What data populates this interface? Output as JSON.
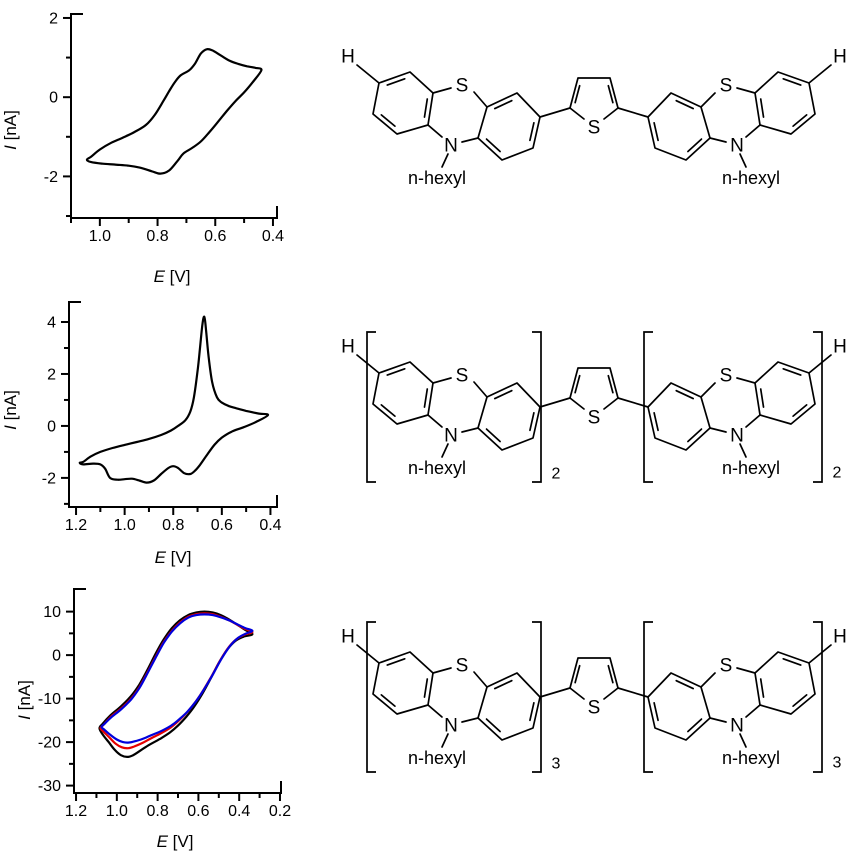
{
  "molecule": {
    "labels": {
      "h_left": "H",
      "h_right": "H",
      "sulfur": "S",
      "nitrogen": "N",
      "hexyl": "n-hexyl",
      "thiophene_sulfur": "S"
    }
  },
  "structures": [
    {
      "repeat_subscript": ""
    },
    {
      "repeat_subscript": "2"
    },
    {
      "repeat_subscript": "3"
    }
  ],
  "chart_data": [
    {
      "type": "line",
      "title": "",
      "xlabel": "E [V]",
      "ylabel": "I [nA]",
      "xlabel_var": "E",
      "xlabel_unit": " [V]",
      "ylabel_var": "I",
      "ylabel_unit": " [nA]",
      "x_axis": {
        "range": [
          1.1,
          0.386
        ],
        "reversed": true,
        "tick_labels": [
          "1.0",
          "0.8",
          "0.6",
          "0.4"
        ],
        "tick_values": [
          1.0,
          0.8,
          0.6,
          0.4
        ],
        "minor_ticks": [
          1.1,
          0.9,
          0.7,
          0.5
        ]
      },
      "y_axis": {
        "range": [
          -3.05,
          2.1
        ],
        "tick_labels": [
          "2",
          "0",
          "-2"
        ],
        "tick_values": [
          2,
          0,
          -2
        ],
        "minor_ticks": [
          1,
          -1,
          -3
        ]
      },
      "grid": false,
      "legend": false,
      "series": [
        {
          "name": "black",
          "color": "#000000",
          "points": [
            [
              0.44,
              0.68
            ],
            [
              0.46,
              0.74
            ],
            [
              0.49,
              0.78
            ],
            [
              0.52,
              0.84
            ],
            [
              0.55,
              0.92
            ],
            [
              0.58,
              1.05
            ],
            [
              0.61,
              1.18
            ],
            [
              0.63,
              1.21
            ],
            [
              0.65,
              1.1
            ],
            [
              0.67,
              0.85
            ],
            [
              0.69,
              0.68
            ],
            [
              0.72,
              0.55
            ],
            [
              0.74,
              0.38
            ],
            [
              0.76,
              0.15
            ],
            [
              0.78,
              -0.1
            ],
            [
              0.81,
              -0.45
            ],
            [
              0.84,
              -0.7
            ],
            [
              0.88,
              -0.88
            ],
            [
              0.92,
              -1.02
            ],
            [
              0.96,
              -1.15
            ],
            [
              1.0,
              -1.32
            ],
            [
              1.03,
              -1.5
            ],
            [
              1.045,
              -1.58
            ],
            [
              1.03,
              -1.64
            ],
            [
              0.99,
              -1.68
            ],
            [
              0.95,
              -1.7
            ],
            [
              0.9,
              -1.73
            ],
            [
              0.86,
              -1.78
            ],
            [
              0.82,
              -1.87
            ],
            [
              0.79,
              -1.93
            ],
            [
              0.76,
              -1.85
            ],
            [
              0.73,
              -1.6
            ],
            [
              0.71,
              -1.42
            ],
            [
              0.68,
              -1.28
            ],
            [
              0.65,
              -1.12
            ],
            [
              0.62,
              -0.88
            ],
            [
              0.59,
              -0.62
            ],
            [
              0.56,
              -0.35
            ],
            [
              0.53,
              -0.1
            ],
            [
              0.5,
              0.12
            ],
            [
              0.47,
              0.38
            ]
          ]
        }
      ]
    },
    {
      "type": "line",
      "title": "",
      "xlabel": "E [V]",
      "ylabel": "I [nA]",
      "xlabel_var": "E",
      "xlabel_unit": " [V]",
      "ylabel_var": "I",
      "ylabel_unit": " [nA]",
      "x_axis": {
        "range": [
          1.229,
          0.373
        ],
        "reversed": true,
        "tick_labels": [
          "1.2",
          "1.0",
          "0.8",
          "0.6",
          "0.4"
        ],
        "tick_values": [
          1.2,
          1.0,
          0.8,
          0.6,
          0.4
        ],
        "minor_ticks": [
          1.1,
          0.9,
          0.7,
          0.5
        ]
      },
      "y_axis": {
        "range": [
          -3.12,
          4.77
        ],
        "tick_labels": [
          "4",
          "2",
          "0",
          "-2"
        ],
        "tick_values": [
          4,
          2,
          0,
          -2
        ],
        "minor_ticks": [
          3,
          1,
          -1,
          -3
        ]
      },
      "grid": false,
      "legend": false,
      "series": [
        {
          "name": "black",
          "color": "#000000",
          "points": [
            [
              0.41,
              0.42
            ],
            [
              0.45,
              0.48
            ],
            [
              0.5,
              0.58
            ],
            [
              0.54,
              0.68
            ],
            [
              0.57,
              0.76
            ],
            [
              0.6,
              0.9
            ],
            [
              0.62,
              1.1
            ],
            [
              0.64,
              1.7
            ],
            [
              0.655,
              2.7
            ],
            [
              0.665,
              3.7
            ],
            [
              0.672,
              4.2
            ],
            [
              0.68,
              3.9
            ],
            [
              0.69,
              3.0
            ],
            [
              0.7,
              2.1
            ],
            [
              0.715,
              1.1
            ],
            [
              0.73,
              0.55
            ],
            [
              0.75,
              0.22
            ],
            [
              0.78,
              0.0
            ],
            [
              0.81,
              -0.18
            ],
            [
              0.85,
              -0.35
            ],
            [
              0.9,
              -0.5
            ],
            [
              0.95,
              -0.62
            ],
            [
              1.0,
              -0.73
            ],
            [
              1.05,
              -0.85
            ],
            [
              1.1,
              -1.0
            ],
            [
              1.14,
              -1.18
            ],
            [
              1.17,
              -1.38
            ],
            [
              1.185,
              -1.42
            ],
            [
              1.17,
              -1.48
            ],
            [
              1.13,
              -1.45
            ],
            [
              1.1,
              -1.48
            ],
            [
              1.08,
              -1.65
            ],
            [
              1.06,
              -2.0
            ],
            [
              1.03,
              -2.07
            ],
            [
              1.0,
              -2.05
            ],
            [
              0.97,
              -2.03
            ],
            [
              0.94,
              -2.1
            ],
            [
              0.91,
              -2.18
            ],
            [
              0.88,
              -2.1
            ],
            [
              0.85,
              -1.85
            ],
            [
              0.82,
              -1.62
            ],
            [
              0.8,
              -1.55
            ],
            [
              0.78,
              -1.62
            ],
            [
              0.755,
              -1.82
            ],
            [
              0.73,
              -1.85
            ],
            [
              0.71,
              -1.72
            ],
            [
              0.69,
              -1.5
            ],
            [
              0.66,
              -1.1
            ],
            [
              0.63,
              -0.72
            ],
            [
              0.6,
              -0.45
            ],
            [
              0.56,
              -0.22
            ],
            [
              0.51,
              -0.05
            ],
            [
              0.46,
              0.15
            ]
          ]
        }
      ]
    },
    {
      "type": "line",
      "title": "",
      "xlabel": "E [V]",
      "ylabel": "I [nA]",
      "xlabel_var": "E",
      "xlabel_unit": " [V]",
      "ylabel_var": "I",
      "ylabel_unit": " [nA]",
      "x_axis": {
        "range": [
          1.21,
          0.195
        ],
        "reversed": true,
        "tick_labels": [
          "1.2",
          "1.0",
          "0.8",
          "0.6",
          "0.4",
          "0.2"
        ],
        "tick_values": [
          1.2,
          1.0,
          0.8,
          0.6,
          0.4,
          0.2
        ],
        "minor_ticks": [
          1.1,
          0.9,
          0.7,
          0.5,
          0.3
        ]
      },
      "y_axis": {
        "range": [
          -31.7,
          15.2
        ],
        "tick_labels": [
          "10",
          "0",
          "-10",
          "-20",
          "-30"
        ],
        "tick_values": [
          10,
          0,
          -10,
          -20,
          -30
        ],
        "minor_ticks": [
          5,
          -5,
          -15,
          -25
        ]
      },
      "grid": false,
      "legend": false,
      "series": [
        {
          "name": "black",
          "color": "#000000",
          "points": [
            [
              0.335,
              4.8
            ],
            [
              0.37,
              5.8
            ],
            [
              0.41,
              7.0
            ],
            [
              0.45,
              8.2
            ],
            [
              0.49,
              9.2
            ],
            [
              0.53,
              9.8
            ],
            [
              0.57,
              10.0
            ],
            [
              0.61,
              9.8
            ],
            [
              0.65,
              9.2
            ],
            [
              0.69,
              8.0
            ],
            [
              0.73,
              6.2
            ],
            [
              0.77,
              3.6
            ],
            [
              0.81,
              0.3
            ],
            [
              0.85,
              -3.4
            ],
            [
              0.89,
              -6.8
            ],
            [
              0.93,
              -9.4
            ],
            [
              0.98,
              -11.8
            ],
            [
              1.03,
              -13.8
            ],
            [
              1.07,
              -15.8
            ],
            [
              1.085,
              -16.8
            ],
            [
              1.07,
              -18.2
            ],
            [
              1.04,
              -20.0
            ],
            [
              1.01,
              -21.8
            ],
            [
              0.98,
              -23.0
            ],
            [
              0.95,
              -23.4
            ],
            [
              0.92,
              -23.0
            ],
            [
              0.88,
              -21.8
            ],
            [
              0.84,
              -20.6
            ],
            [
              0.79,
              -19.3
            ],
            [
              0.74,
              -17.8
            ],
            [
              0.7,
              -16.2
            ],
            [
              0.66,
              -14.2
            ],
            [
              0.62,
              -11.8
            ],
            [
              0.58,
              -8.8
            ],
            [
              0.54,
              -5.4
            ],
            [
              0.5,
              -1.8
            ],
            [
              0.46,
              1.2
            ],
            [
              0.42,
              3.2
            ],
            [
              0.38,
              4.2
            ]
          ]
        },
        {
          "name": "red",
          "color": "#e60000",
          "points": [
            [
              0.335,
              5.3
            ],
            [
              0.37,
              6.0
            ],
            [
              0.41,
              7.0
            ],
            [
              0.45,
              8.0
            ],
            [
              0.49,
              8.8
            ],
            [
              0.53,
              9.4
            ],
            [
              0.57,
              9.6
            ],
            [
              0.61,
              9.4
            ],
            [
              0.65,
              8.8
            ],
            [
              0.69,
              7.5
            ],
            [
              0.73,
              5.6
            ],
            [
              0.77,
              3.0
            ],
            [
              0.81,
              -0.4
            ],
            [
              0.85,
              -4.0
            ],
            [
              0.89,
              -7.4
            ],
            [
              0.93,
              -10.0
            ],
            [
              0.98,
              -12.3
            ],
            [
              1.03,
              -14.2
            ],
            [
              1.065,
              -16.0
            ],
            [
              1.08,
              -16.8
            ],
            [
              1.065,
              -17.6
            ],
            [
              1.035,
              -19.0
            ],
            [
              1.005,
              -20.4
            ],
            [
              0.975,
              -21.2
            ],
            [
              0.945,
              -21.4
            ],
            [
              0.915,
              -21.0
            ],
            [
              0.875,
              -20.2
            ],
            [
              0.835,
              -19.2
            ],
            [
              0.785,
              -18.0
            ],
            [
              0.735,
              -16.6
            ],
            [
              0.695,
              -15.0
            ],
            [
              0.655,
              -13.1
            ],
            [
              0.615,
              -10.8
            ],
            [
              0.575,
              -8.0
            ],
            [
              0.535,
              -4.8
            ],
            [
              0.495,
              -1.4
            ],
            [
              0.455,
              1.6
            ],
            [
              0.415,
              3.6
            ],
            [
              0.375,
              4.7
            ]
          ]
        },
        {
          "name": "blue",
          "color": "#0000dc",
          "points": [
            [
              0.335,
              5.6
            ],
            [
              0.37,
              6.2
            ],
            [
              0.41,
              7.1
            ],
            [
              0.45,
              8.0
            ],
            [
              0.49,
              8.7
            ],
            [
              0.53,
              9.2
            ],
            [
              0.57,
              9.35
            ],
            [
              0.61,
              9.2
            ],
            [
              0.65,
              8.6
            ],
            [
              0.69,
              7.3
            ],
            [
              0.73,
              5.4
            ],
            [
              0.77,
              2.8
            ],
            [
              0.81,
              -0.6
            ],
            [
              0.85,
              -4.2
            ],
            [
              0.89,
              -7.6
            ],
            [
              0.93,
              -10.2
            ],
            [
              0.98,
              -12.5
            ],
            [
              1.03,
              -14.4
            ],
            [
              1.06,
              -15.8
            ],
            [
              1.075,
              -16.5
            ],
            [
              1.06,
              -17.2
            ],
            [
              1.03,
              -18.4
            ],
            [
              1.0,
              -19.4
            ],
            [
              0.97,
              -20.0
            ],
            [
              0.94,
              -20.1
            ],
            [
              0.91,
              -19.8
            ],
            [
              0.87,
              -19.2
            ],
            [
              0.83,
              -18.4
            ],
            [
              0.78,
              -17.4
            ],
            [
              0.73,
              -16.1
            ],
            [
              0.69,
              -14.6
            ],
            [
              0.65,
              -12.8
            ],
            [
              0.61,
              -10.5
            ],
            [
              0.57,
              -7.7
            ],
            [
              0.53,
              -4.5
            ],
            [
              0.49,
              -1.1
            ],
            [
              0.45,
              1.8
            ],
            [
              0.41,
              3.8
            ],
            [
              0.37,
              4.9
            ]
          ]
        }
      ]
    }
  ]
}
